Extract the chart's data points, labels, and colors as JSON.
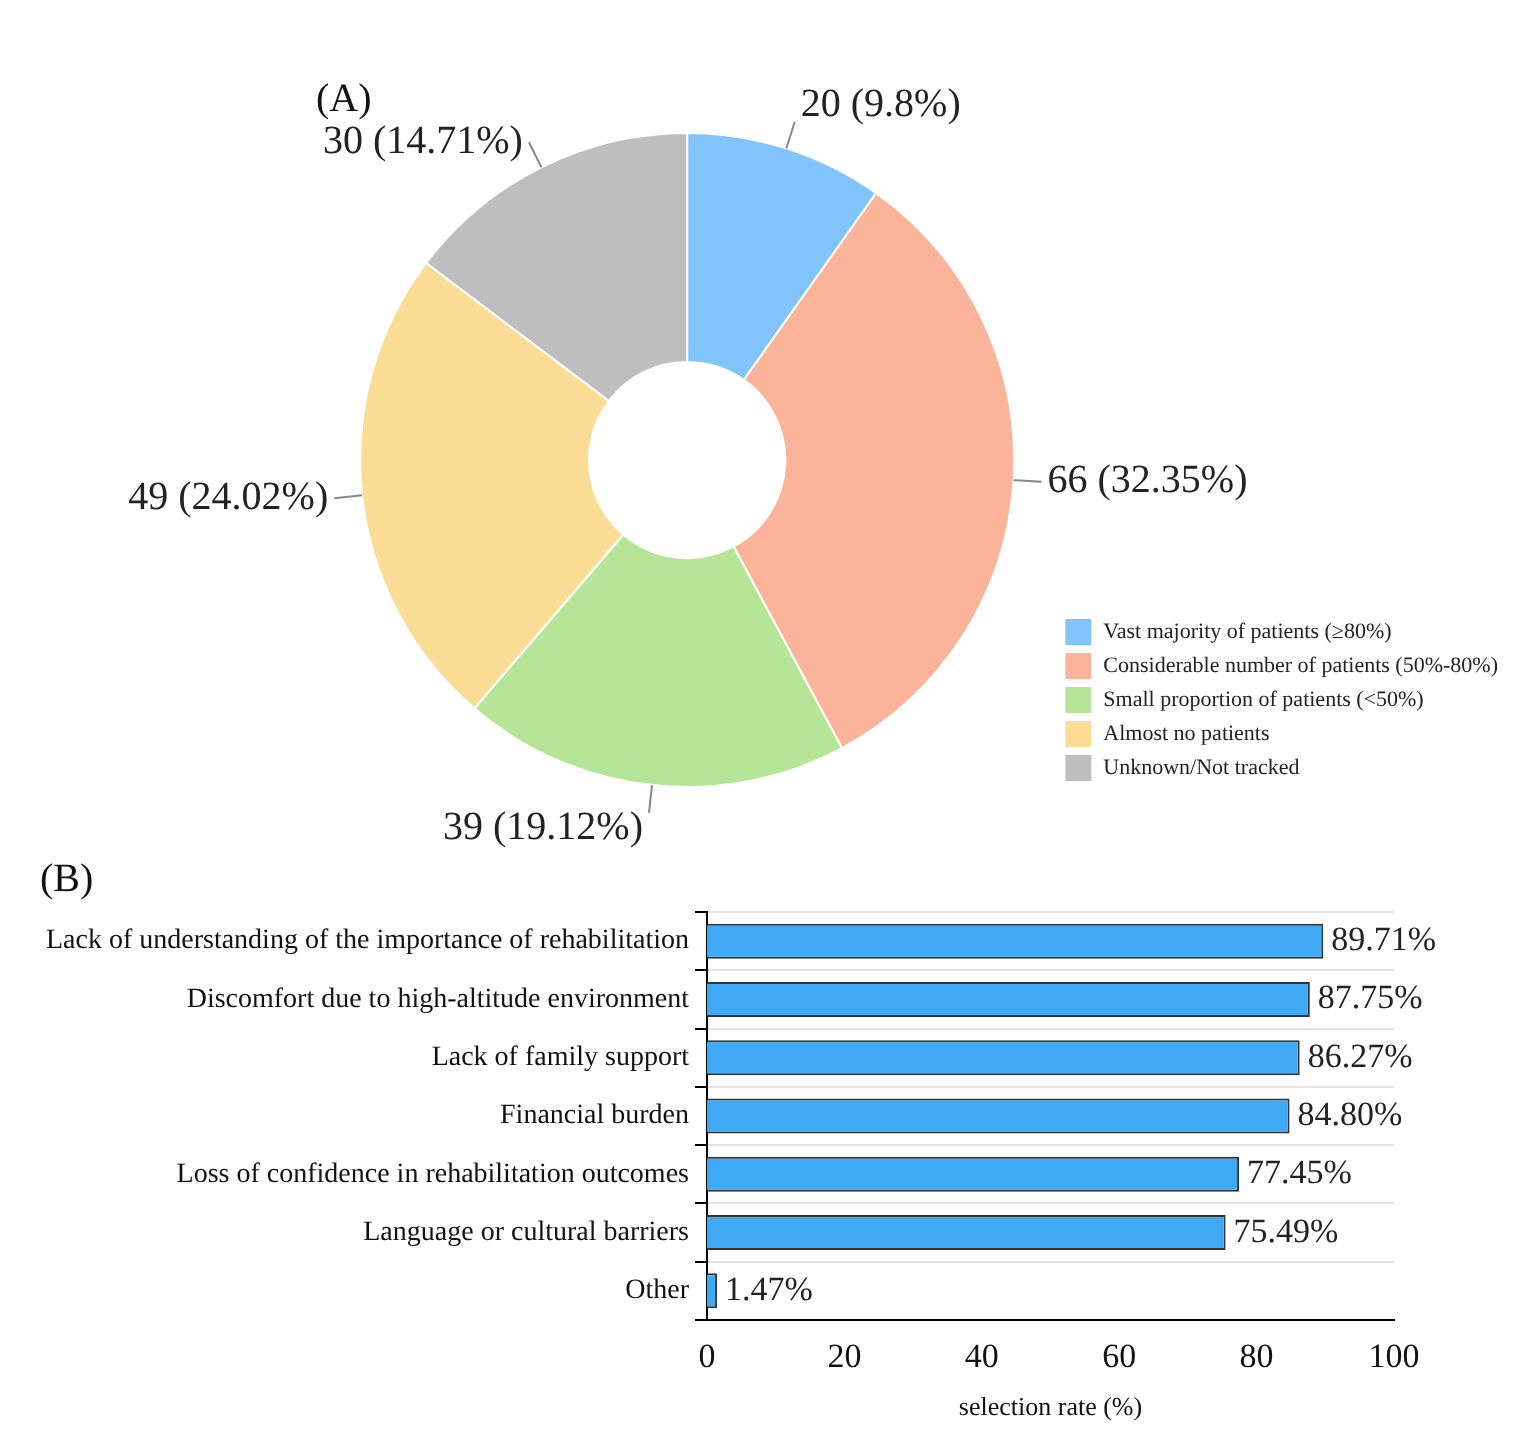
{
  "chart_data": [
    {
      "type": "donut",
      "title": "(A)",
      "categories": [
        "Vast majority of patients (≥80%)",
        "Considerable number of patients (50%-80%)",
        "Small proportion of patients (<50%)",
        "Almost no patients",
        "Unknown/Not tracked"
      ],
      "values": [
        20,
        66,
        39,
        49,
        30
      ],
      "colors": [
        "#80c4fb",
        "#fbb49a",
        "#b6e597",
        "#fbdc94",
        "#bebebe"
      ],
      "value_labels": [
        "20 (9.8%)",
        "66 (32.35%)",
        "39 (19.12%)",
        "49 (24.02%)",
        "30 (14.71%)"
      ],
      "legend": "bottom right"
    },
    {
      "type": "bar",
      "orientation": "horizontal",
      "title": "(B)",
      "categories": [
        "Lack of understanding of the importance of rehabilitation",
        "Discomfort due to high-altitude environment",
        "Lack of family support",
        "Financial burden",
        "Loss of confidence in rehabilitation outcomes",
        "Language or cultural barriers",
        "Other"
      ],
      "values": [
        89.71,
        87.75,
        86.27,
        84.8,
        77.45,
        75.49,
        1.47
      ],
      "color": "#3fa9f5",
      "value_labels": [
        "89.71%",
        "87.75%",
        "86.27%",
        "84.80%",
        "77.45%",
        "75.49%",
        "1.47%"
      ],
      "xlim": [
        0,
        100
      ],
      "xticks": [
        0,
        20,
        40,
        60,
        80,
        100
      ],
      "xlabel": "selection rate (%)",
      "grid": "y"
    }
  ]
}
